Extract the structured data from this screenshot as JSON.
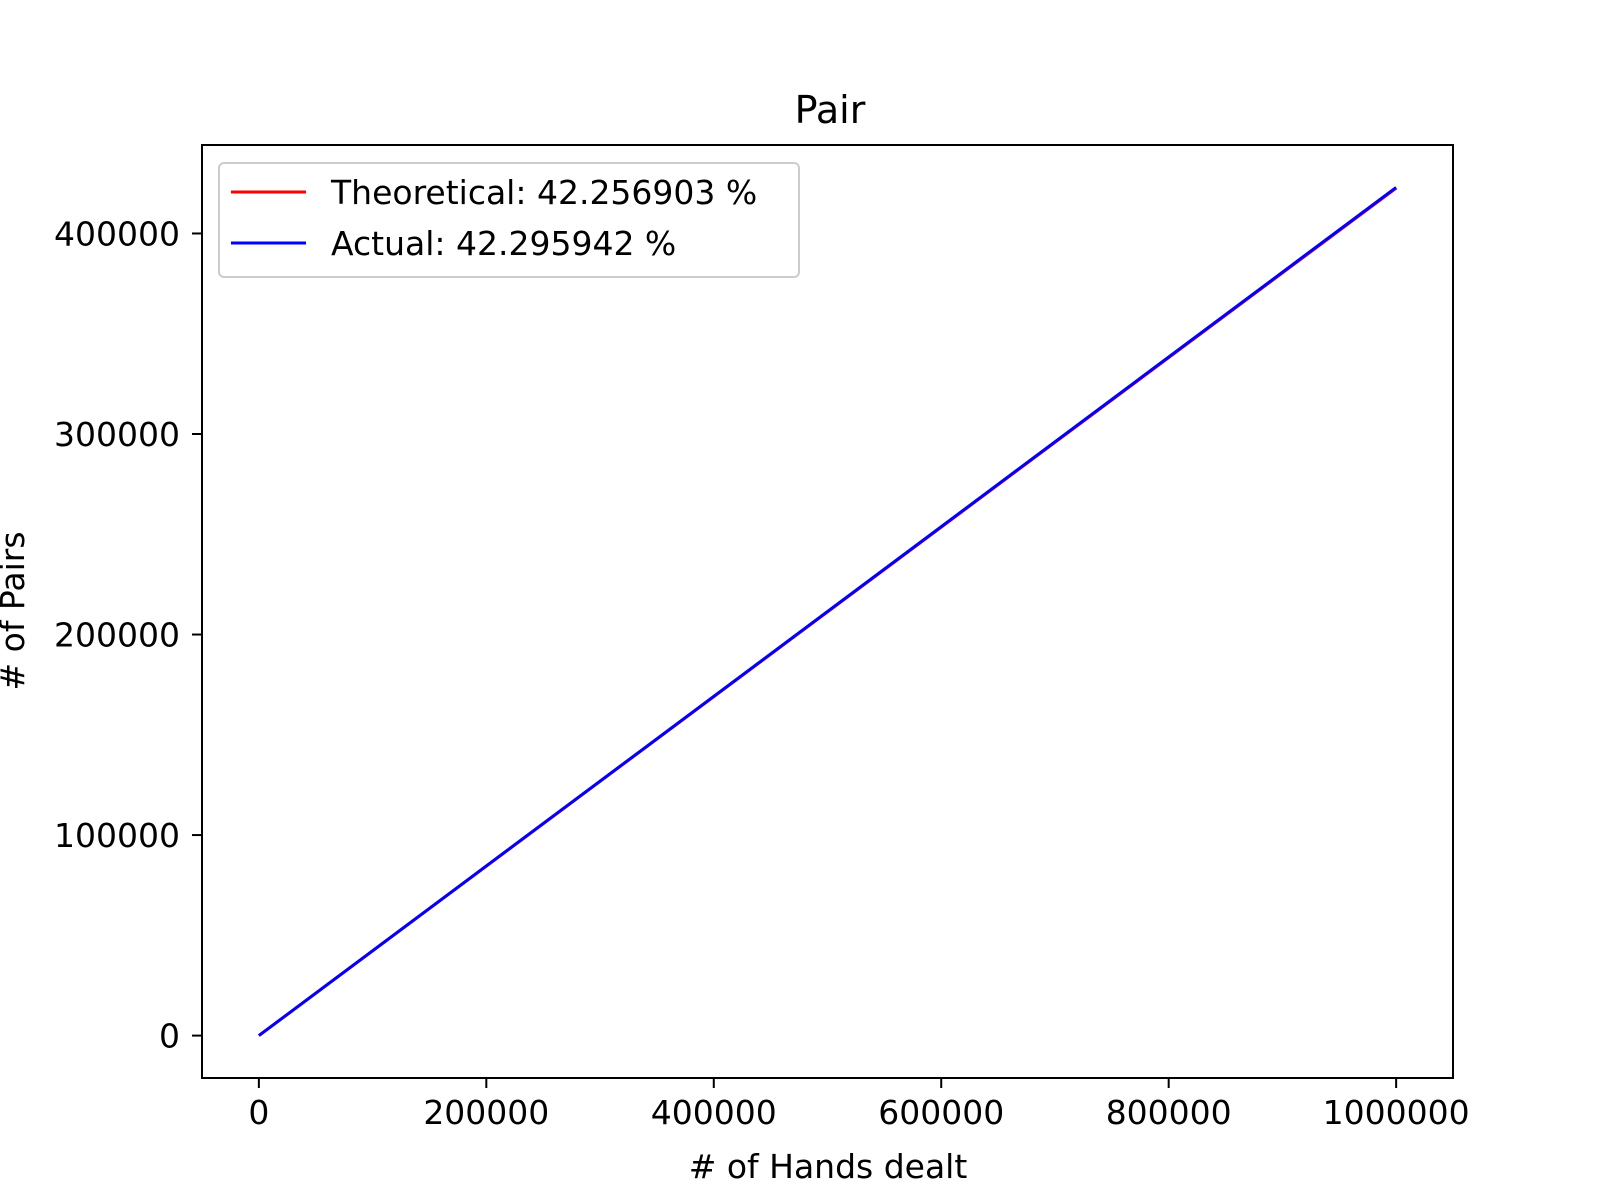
{
  "chart_data": {
    "type": "line",
    "title": "Pair",
    "xlabel": "# of Hands dealt",
    "ylabel": "# of Pairs",
    "xlim": [
      -50000,
      1050000
    ],
    "ylim": [
      -21148,
      444122
    ],
    "xticks": [
      0,
      200000,
      400000,
      600000,
      800000,
      1000000
    ],
    "xtick_labels": [
      "0",
      "200000",
      "400000",
      "600000",
      "800000",
      "1000000"
    ],
    "yticks": [
      0,
      100000,
      200000,
      300000,
      400000
    ],
    "ytick_labels": [
      "0",
      "100000",
      "200000",
      "300000",
      "400000"
    ],
    "grid": false,
    "legend_position": "upper-left",
    "series": [
      {
        "name": "Theoretical: 42.256903 %",
        "color": "#ff0000",
        "x": [
          0,
          1000000
        ],
        "y": [
          0,
          422569
        ]
      },
      {
        "name": "Actual: 42.295942 %",
        "color": "#0000ff",
        "x": [
          0,
          1000000
        ],
        "y": [
          0,
          422959
        ]
      }
    ]
  }
}
